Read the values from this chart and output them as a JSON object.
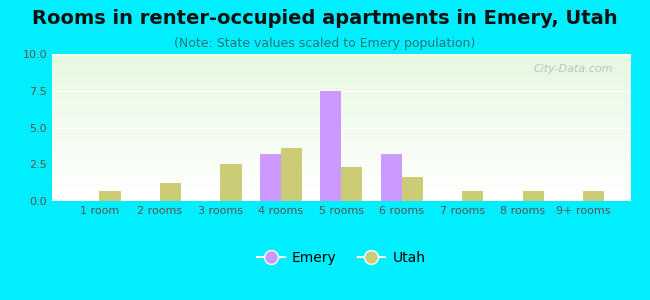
{
  "title": "Rooms in renter-occupied apartments in Emery, Utah",
  "subtitle": "(Note: State values scaled to Emery population)",
  "categories": [
    "1 room",
    "2 rooms",
    "3 rooms",
    "4 rooms",
    "5 rooms",
    "6 rooms",
    "7 rooms",
    "8 rooms",
    "9+ rooms"
  ],
  "emery_values": [
    0,
    0,
    0,
    3.2,
    7.5,
    3.2,
    0,
    0,
    0
  ],
  "utah_values": [
    0.7,
    1.2,
    2.5,
    3.6,
    2.3,
    1.6,
    0.7,
    0.7,
    0.7
  ],
  "emery_color": "#cc99ff",
  "utah_color": "#cccc77",
  "ylim": [
    0,
    10
  ],
  "yticks": [
    0,
    2.5,
    5,
    7.5,
    10
  ],
  "background_outer": "#00eeff",
  "bar_width": 0.35,
  "title_fontsize": 14,
  "subtitle_fontsize": 9,
  "tick_fontsize": 8,
  "legend_fontsize": 10,
  "watermark": "City-Data.com",
  "title_color": "#111111",
  "subtitle_color": "#227777",
  "tick_color": "#555555"
}
